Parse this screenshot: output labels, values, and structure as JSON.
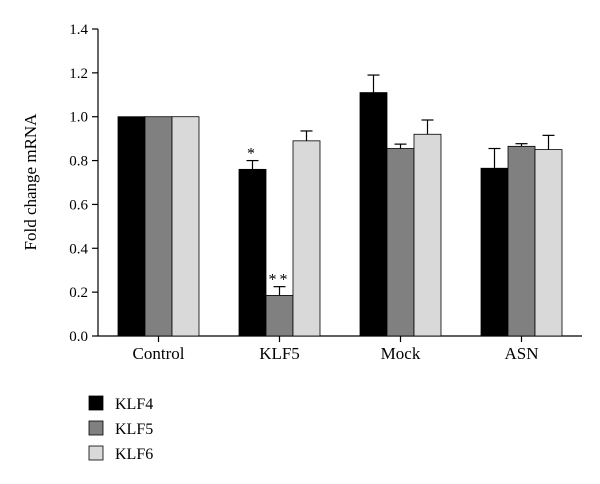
{
  "chart_data": {
    "type": "bar",
    "title": "",
    "xlabel": "",
    "ylabel": "Fold change mRNA",
    "ylim": [
      0,
      1.4
    ],
    "yticks": [
      "0.0",
      "0.2",
      "0.4",
      "0.6",
      "0.8",
      "1.0",
      "1.2",
      "1.4"
    ],
    "categories": [
      "Control",
      "KLF5",
      "Mock",
      "ASN"
    ],
    "series": [
      {
        "name": "KLF4",
        "color": "#000000",
        "values": [
          1.0,
          0.76,
          1.11,
          0.765
        ],
        "errors": [
          0,
          0.04,
          0.08,
          0.09
        ]
      },
      {
        "name": "KLF5",
        "color": "#808080",
        "values": [
          1.0,
          0.185,
          0.855,
          0.865
        ],
        "errors": [
          0,
          0.04,
          0.02,
          0.012
        ]
      },
      {
        "name": "KLF6",
        "color": "#d9d9d9",
        "values": [
          1.0,
          0.89,
          0.92,
          0.85
        ],
        "errors": [
          0,
          0.045,
          0.065,
          0.065
        ]
      }
    ],
    "annotations": [
      {
        "category": "KLF5",
        "series": "KLF4",
        "text": "*"
      },
      {
        "category": "KLF5",
        "series": "KLF5",
        "text": "**"
      }
    ],
    "grid": false,
    "legend_position": "bottom-left"
  }
}
